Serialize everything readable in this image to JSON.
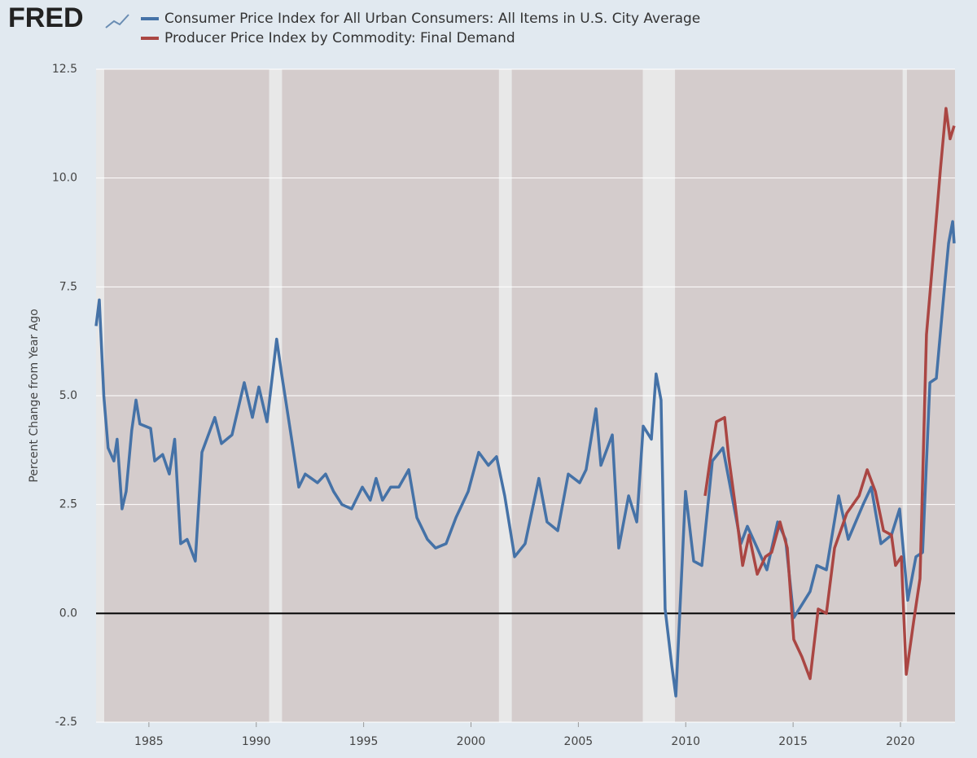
{
  "logo": "FRED",
  "chart_data": {
    "type": "line",
    "ylabel": "Percent Change from Year Ago",
    "xlim": [
      1982.54,
      2022.54
    ],
    "ylim": [
      -2.5,
      12.5
    ],
    "xticks": [
      1985,
      1990,
      1995,
      2000,
      2005,
      2010,
      2015,
      2020
    ],
    "yticks": [
      -2.5,
      {
        "value": 0,
        "label": "0.0"
      },
      2.5,
      {
        "value": 5,
        "label": "5.0"
      },
      7.5,
      {
        "value": 10,
        "label": "10.0"
      },
      12.5
    ],
    "grid": true,
    "shading": [
      [
        1982.54,
        1982.92
      ],
      [
        1990.6,
        1991.2
      ],
      [
        2001.3,
        2001.9
      ],
      [
        2008.0,
        2009.5
      ],
      [
        2020.1,
        2020.3
      ]
    ],
    "series": [
      {
        "name": "Consumer Price Index for All Urban Consumers: All Items in U.S. City Average",
        "color": "#4572a7",
        "x": [
          1982.54,
          1982.69,
          1982.9,
          1983.1,
          1983.37,
          1983.52,
          1983.75,
          1983.94,
          1984.2,
          1984.4,
          1984.58,
          1985.08,
          1985.27,
          1985.64,
          1985.95,
          1986.2,
          1986.48,
          1986.78,
          1987.16,
          1987.47,
          1987.92,
          1988.07,
          1988.38,
          1988.87,
          1989.44,
          1989.82,
          1990.12,
          1990.5,
          1990.95,
          1991.18,
          1991.4,
          1991.71,
          1991.98,
          1992.28,
          1992.85,
          1993.23,
          1993.6,
          1993.99,
          1994.44,
          1994.94,
          1995.31,
          1995.58,
          1995.88,
          1996.26,
          1996.64,
          1997.1,
          1997.48,
          1997.97,
          1998.35,
          1998.84,
          1999.3,
          1999.87,
          2000.36,
          2000.81,
          2001.19,
          2001.57,
          2002.03,
          2002.52,
          2003.16,
          2003.54,
          2004.04,
          2004.53,
          2005.06,
          2005.36,
          2005.82,
          2006.05,
          2006.58,
          2006.88,
          2007.34,
          2007.72,
          2008.02,
          2008.4,
          2008.62,
          2008.85,
          2009.04,
          2009.35,
          2009.54,
          2009.99,
          2010.37,
          2010.75,
          2011.24,
          2011.73,
          2012.19,
          2012.57,
          2012.87,
          2013.33,
          2013.78,
          2014.28,
          2014.65,
          2015.03,
          2015.41,
          2015.79,
          2016.1,
          2016.55,
          2017.12,
          2017.57,
          2018.26,
          2018.64,
          2019.09,
          2019.58,
          2019.96,
          2020.34,
          2020.72,
          2021.03,
          2021.37,
          2021.67,
          2022.05,
          2022.24,
          2022.43,
          2022.5
        ],
        "values": [
          6.6,
          7.2,
          5.0,
          3.8,
          3.5,
          4.0,
          2.4,
          2.8,
          4.2,
          4.9,
          4.35,
          4.25,
          3.5,
          3.65,
          3.2,
          4.0,
          1.6,
          1.7,
          1.2,
          3.7,
          4.3,
          4.5,
          3.9,
          4.1,
          5.3,
          4.5,
          5.2,
          4.4,
          6.3,
          5.5,
          4.8,
          3.8,
          2.9,
          3.2,
          3.0,
          3.2,
          2.8,
          2.5,
          2.4,
          2.9,
          2.6,
          3.1,
          2.6,
          2.9,
          2.9,
          3.3,
          2.2,
          1.7,
          1.5,
          1.6,
          2.2,
          2.8,
          3.7,
          3.4,
          3.6,
          2.7,
          1.3,
          1.6,
          3.1,
          2.1,
          1.9,
          3.2,
          3.0,
          3.3,
          4.7,
          3.4,
          4.1,
          1.5,
          2.7,
          2.1,
          4.3,
          4.0,
          5.5,
          4.9,
          0.1,
          -1.2,
          -1.9,
          2.8,
          1.2,
          1.1,
          3.5,
          3.8,
          2.6,
          1.6,
          2.0,
          1.5,
          1.0,
          2.1,
          1.7,
          -0.1,
          0.2,
          0.5,
          1.1,
          1.0,
          2.7,
          1.7,
          2.5,
          2.9,
          1.6,
          1.8,
          2.4,
          0.3,
          1.3,
          1.4,
          5.3,
          5.4,
          7.5,
          8.5,
          9.0,
          8.5
        ]
      },
      {
        "name": "Producer Price Index by Commodity: Final Demand",
        "color": "#aa4643",
        "x": [
          2010.9,
          2011.13,
          2011.43,
          2011.81,
          2012.0,
          2012.3,
          2012.65,
          2012.95,
          2013.33,
          2013.71,
          2014.0,
          2014.39,
          2014.73,
          2015.03,
          2015.41,
          2015.79,
          2016.17,
          2016.55,
          2016.93,
          2017.5,
          2018.07,
          2018.45,
          2018.83,
          2019.21,
          2019.58,
          2019.77,
          2020.04,
          2020.27,
          2020.61,
          2020.91,
          2021.21,
          2021.59,
          2021.86,
          2022.12,
          2022.31,
          2022.5
        ],
        "values": [
          2.7,
          3.5,
          4.4,
          4.5,
          3.6,
          2.5,
          1.1,
          1.8,
          0.9,
          1.3,
          1.4,
          2.1,
          1.5,
          -0.6,
          -1.0,
          -1.5,
          0.1,
          0.0,
          1.5,
          2.3,
          2.7,
          3.3,
          2.8,
          1.9,
          1.8,
          1.1,
          1.3,
          -1.4,
          -0.2,
          0.8,
          6.4,
          8.6,
          10.2,
          11.6,
          10.9,
          11.2
        ]
      }
    ]
  }
}
